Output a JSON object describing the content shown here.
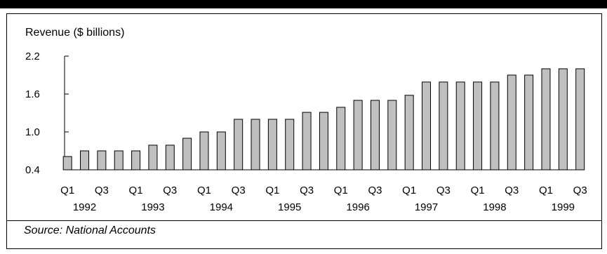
{
  "chart_data": {
    "type": "bar",
    "ylabel": "Revenue ($ billions)",
    "source": "Source:  National Accounts",
    "ylim": [
      0.4,
      2.2
    ],
    "yticks": [
      "2.2",
      "1.6",
      "1.0",
      "0.4"
    ],
    "ytick_values": [
      2.2,
      1.6,
      1.0,
      0.4
    ],
    "xtick_labels": [
      "Q1",
      "Q3",
      "Q1",
      "Q3",
      "Q1",
      "Q3",
      "Q1",
      "Q3",
      "Q1",
      "Q3",
      "Q1",
      "Q3",
      "Q1",
      "Q3",
      "Q1",
      "Q3"
    ],
    "year_labels": [
      "1992",
      "1993",
      "1994",
      "1995",
      "1996",
      "1997",
      "1998",
      "1999"
    ],
    "categories": [
      "1992 Q1",
      "1992 Q2",
      "1992 Q3",
      "1992 Q4",
      "1993 Q1",
      "1993 Q2",
      "1993 Q3",
      "1993 Q4",
      "1994 Q1",
      "1994 Q2",
      "1994 Q3",
      "1994 Q4",
      "1995 Q1",
      "1995 Q2",
      "1995 Q3",
      "1995 Q4",
      "1996 Q1",
      "1996 Q2",
      "1996 Q3",
      "1996 Q4",
      "1997 Q1",
      "1997 Q2",
      "1997 Q3",
      "1997 Q4",
      "1998 Q1",
      "1998 Q2",
      "1998 Q3",
      "1998 Q4",
      "1999 Q1",
      "1999 Q2",
      "1999 Q3"
    ],
    "values": [
      0.61,
      0.7,
      0.7,
      0.7,
      0.7,
      0.79,
      0.79,
      0.9,
      1.0,
      1.0,
      1.2,
      1.2,
      1.2,
      1.2,
      1.31,
      1.31,
      1.39,
      1.5,
      1.5,
      1.5,
      1.58,
      1.79,
      1.79,
      1.79,
      1.79,
      1.79,
      1.9,
      1.9,
      2.0,
      2.0,
      2.0
    ],
    "bar_color": "#c0c0c0",
    "grid": false
  }
}
